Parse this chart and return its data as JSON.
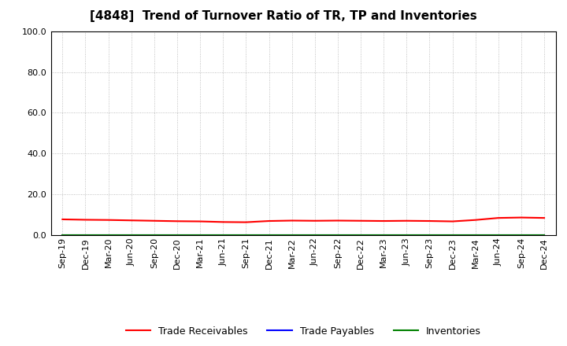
{
  "title": "[4848]  Trend of Turnover Ratio of TR, TP and Inventories",
  "x_labels": [
    "Sep-19",
    "Dec-19",
    "Mar-20",
    "Jun-20",
    "Sep-20",
    "Dec-20",
    "Mar-21",
    "Jun-21",
    "Sep-21",
    "Dec-21",
    "Mar-22",
    "Jun-22",
    "Sep-22",
    "Dec-22",
    "Mar-23",
    "Jun-23",
    "Sep-23",
    "Dec-23",
    "Mar-24",
    "Jun-24",
    "Sep-24",
    "Dec-24"
  ],
  "trade_receivables": [
    7.8,
    7.6,
    7.5,
    7.3,
    7.1,
    6.9,
    6.8,
    6.5,
    6.4,
    7.0,
    7.2,
    7.1,
    7.2,
    7.1,
    7.0,
    7.1,
    7.0,
    6.8,
    7.5,
    8.5,
    8.7,
    8.5
  ],
  "trade_payables": [
    0.05,
    0.05,
    0.05,
    0.05,
    0.05,
    0.05,
    0.05,
    0.05,
    0.05,
    0.05,
    0.05,
    0.05,
    0.05,
    0.05,
    0.05,
    0.05,
    0.05,
    0.05,
    0.05,
    0.05,
    0.05,
    0.05
  ],
  "inventories": [
    0.1,
    0.1,
    0.1,
    0.1,
    0.1,
    0.1,
    0.1,
    0.1,
    0.1,
    0.1,
    0.1,
    0.1,
    0.1,
    0.1,
    0.1,
    0.1,
    0.1,
    0.1,
    0.1,
    0.1,
    0.1,
    0.1
  ],
  "tr_color": "#ff0000",
  "tp_color": "#0000ff",
  "inv_color": "#008000",
  "ylim": [
    0.0,
    100.0
  ],
  "yticks": [
    0.0,
    20.0,
    40.0,
    60.0,
    80.0,
    100.0
  ],
  "background_color": "#ffffff",
  "grid_color": "#b0b0b0",
  "legend_labels": [
    "Trade Receivables",
    "Trade Payables",
    "Inventories"
  ],
  "title_fontsize": 11,
  "tick_fontsize": 8,
  "legend_fontsize": 9
}
